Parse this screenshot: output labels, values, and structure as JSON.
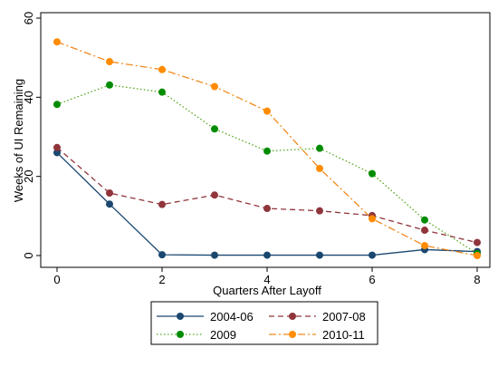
{
  "chart_data": {
    "type": "line",
    "xlabel": "Quarters After Layoff",
    "ylabel": "Weeks of UI Remaining",
    "xlim": [
      0,
      8
    ],
    "ylim": [
      0,
      60
    ],
    "xticks": [
      0,
      2,
      4,
      6,
      8
    ],
    "yticks": [
      0,
      20,
      40,
      60
    ],
    "grid": false,
    "legend_position": "bottom",
    "x": [
      0,
      1,
      2,
      3,
      4,
      5,
      6,
      7,
      8
    ],
    "series": [
      {
        "name": "2004-06",
        "color": "#1a476f",
        "dash": "solid",
        "values": [
          26,
          13,
          0.2,
          0.1,
          0.1,
          0.1,
          0.1,
          1.5,
          1
        ]
      },
      {
        "name": "2007-08",
        "color": "#90353b",
        "dash": "dashed",
        "values": [
          27.3,
          15.8,
          12.9,
          15.3,
          11.9,
          11.3,
          10.1,
          6.4,
          3.3
        ]
      },
      {
        "name": "2009",
        "color": "#55a61f",
        "marker_color": "#008c00",
        "dash": "dotted",
        "values": [
          38.2,
          43.1,
          41.3,
          32,
          26.4,
          27.1,
          20.7,
          9,
          0.5
        ]
      },
      {
        "name": "2010-11",
        "color": "#f08a1f",
        "marker_color": "#ff8c00",
        "dash": "dashdot",
        "values": [
          54,
          49,
          47,
          42.7,
          36.5,
          22,
          9.3,
          2.5,
          0
        ]
      }
    ]
  }
}
